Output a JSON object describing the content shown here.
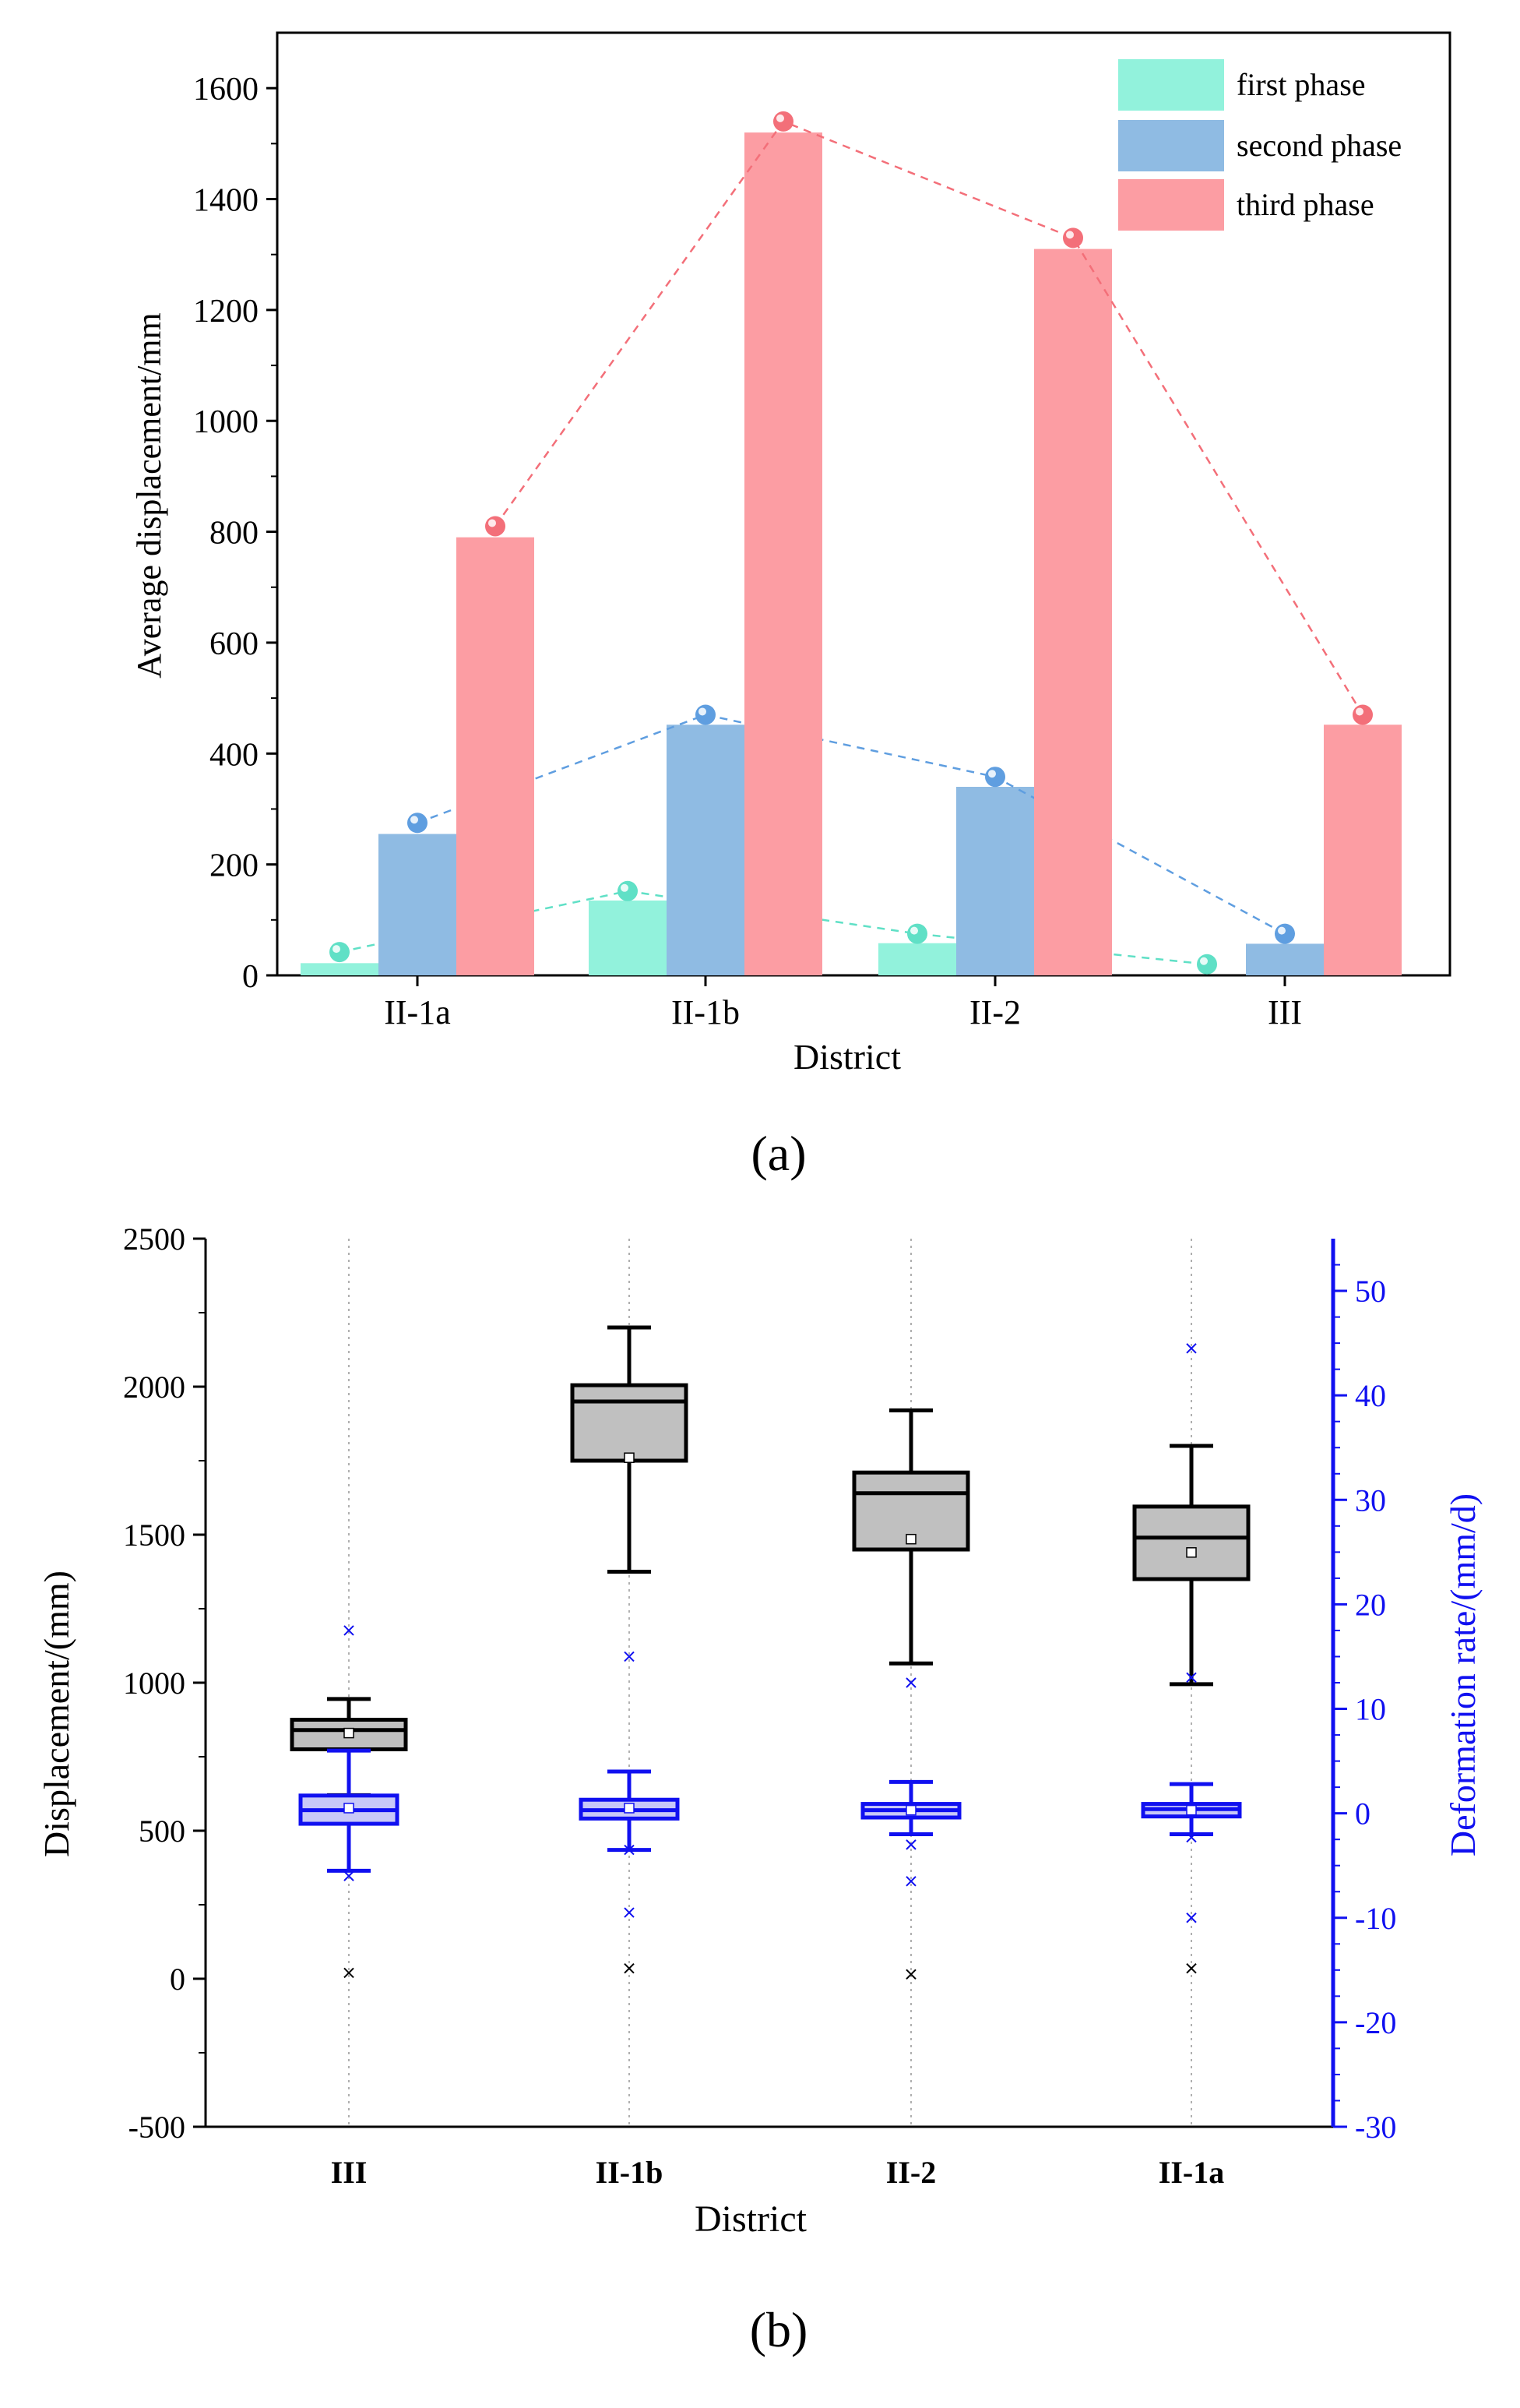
{
  "colors": {
    "first": "#92f2dc",
    "second": "#8fbbe3",
    "third": "#fc9da3",
    "gray_box": "#c0c0c0",
    "blue": "#1010f0",
    "black": "#000000"
  },
  "chart_data": [
    {
      "id": "a",
      "type": "bar",
      "panel_label": "(a)",
      "title": "",
      "xlabel": "District",
      "ylabel": "Average displacement/mm",
      "ylim": [
        0,
        1700
      ],
      "yticks": [
        "0",
        "200",
        "400",
        "600",
        "800",
        "1000",
        "1200",
        "1400",
        "1600"
      ],
      "ytick_values": [
        0,
        200,
        400,
        600,
        800,
        1000,
        1200,
        1400,
        1600
      ],
      "categories": [
        "II-1a",
        "II-1b",
        "II-2",
        "III"
      ],
      "legend_position": "top-right",
      "series": [
        {
          "name": "first phase",
          "values": [
            22,
            135,
            58,
            0
          ],
          "markers": [
            42,
            152,
            75,
            20
          ]
        },
        {
          "name": "second phase",
          "values": [
            255,
            452,
            340,
            57
          ],
          "markers": [
            275,
            470,
            358,
            75
          ]
        },
        {
          "name": "third phase",
          "values": [
            790,
            1520,
            1310,
            452
          ],
          "markers": [
            810,
            1540,
            1330,
            470
          ]
        }
      ]
    },
    {
      "id": "b",
      "type": "box",
      "panel_label": "(b)",
      "title": "",
      "xlabel": "District",
      "ylabel_left": "Displacement/(mm)",
      "ylabel_right": "Deformation rate/(mm/d)",
      "categories": [
        "III",
        "II-1b",
        "II-2",
        "II-1a"
      ],
      "ylim_left": [
        -500,
        2500
      ],
      "yticks_left": [
        "-500",
        "0",
        "500",
        "1000",
        "1500",
        "2000",
        "2500"
      ],
      "ytick_values_left": [
        -500,
        0,
        500,
        1000,
        1500,
        2000,
        2500
      ],
      "ylim_right": [
        -30,
        55
      ],
      "yticks_right": [
        "-30",
        "-20",
        "-10",
        "0",
        "10",
        "20",
        "30",
        "40",
        "50"
      ],
      "ytick_values_right": [
        -30,
        -20,
        -10,
        0,
        10,
        20,
        30,
        40,
        50
      ],
      "displacement": [
        {
          "district": "III",
          "min": 620,
          "q1": 775,
          "median": 840,
          "q3": 875,
          "max": 945,
          "mean": 830,
          "outliers": [
            20
          ]
        },
        {
          "district": "II-1b",
          "min": 1375,
          "q1": 1750,
          "median": 1950,
          "q3": 2005,
          "max": 2200,
          "mean": 1760,
          "outliers": [
            35
          ]
        },
        {
          "district": "II-2",
          "min": 1065,
          "q1": 1450,
          "median": 1640,
          "q3": 1710,
          "max": 1920,
          "mean": 1485,
          "outliers": [
            15
          ]
        },
        {
          "district": "II-1a",
          "min": 995,
          "q1": 1350,
          "median": 1490,
          "q3": 1595,
          "max": 1800,
          "mean": 1440,
          "outliers": [
            35
          ]
        }
      ],
      "deformation_rate": [
        {
          "district": "III",
          "min": -5.5,
          "q1": -1.0,
          "median": 0.3,
          "q3": 1.7,
          "max": 6.0,
          "mean": 0.5,
          "outliers": [
            -6,
            17.5
          ]
        },
        {
          "district": "II-1b",
          "min": -3.5,
          "q1": -0.5,
          "median": 0.3,
          "q3": 1.3,
          "max": 4.0,
          "mean": 0.5,
          "outliers": [
            15,
            -3.5,
            -9.5
          ]
        },
        {
          "district": "II-2",
          "min": -2.0,
          "q1": -0.4,
          "median": 0.3,
          "q3": 0.9,
          "max": 3.0,
          "mean": 0.3,
          "outliers": [
            12.5,
            -3,
            -6.5
          ]
        },
        {
          "district": "II-1a",
          "min": -2.0,
          "q1": -0.3,
          "median": 0.4,
          "q3": 0.9,
          "max": 2.8,
          "mean": 0.3,
          "outliers": [
            44.5,
            13,
            -2.3,
            -10
          ]
        }
      ]
    }
  ]
}
